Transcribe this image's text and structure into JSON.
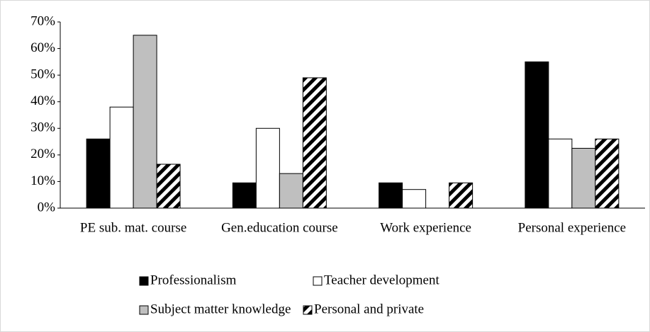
{
  "chart_data": {
    "type": "bar",
    "categories": [
      "PE sub. mat. course",
      "Gen.education course",
      "Work experience",
      "Personal experience"
    ],
    "series": [
      {
        "name": "Professionalism",
        "color": "#000000",
        "values": [
          26,
          9.5,
          9.5,
          55
        ]
      },
      {
        "name": "Teacher development",
        "color": "#ffffff",
        "values": [
          38,
          30,
          7,
          26
        ]
      },
      {
        "name": "Subject matter knowledge",
        "color": "#bfbfbf",
        "values": [
          65,
          13,
          0,
          22.5
        ]
      },
      {
        "name": "Personal and private",
        "color": "#000000",
        "hatch": true,
        "values": [
          16.5,
          49,
          9.5,
          26
        ]
      }
    ],
    "ylim": [
      0,
      70
    ],
    "yticks": [
      {
        "value": 0,
        "label": "0%"
      },
      {
        "value": 10,
        "label": "10%"
      },
      {
        "value": 20,
        "label": "20%"
      },
      {
        "value": 30,
        "label": "30%"
      },
      {
        "value": 40,
        "label": "40%"
      },
      {
        "value": 50,
        "label": "50%"
      },
      {
        "value": 60,
        "label": "60%"
      },
      {
        "value": 70,
        "label": "70%"
      }
    ],
    "grid": false,
    "legend": "bottom"
  }
}
